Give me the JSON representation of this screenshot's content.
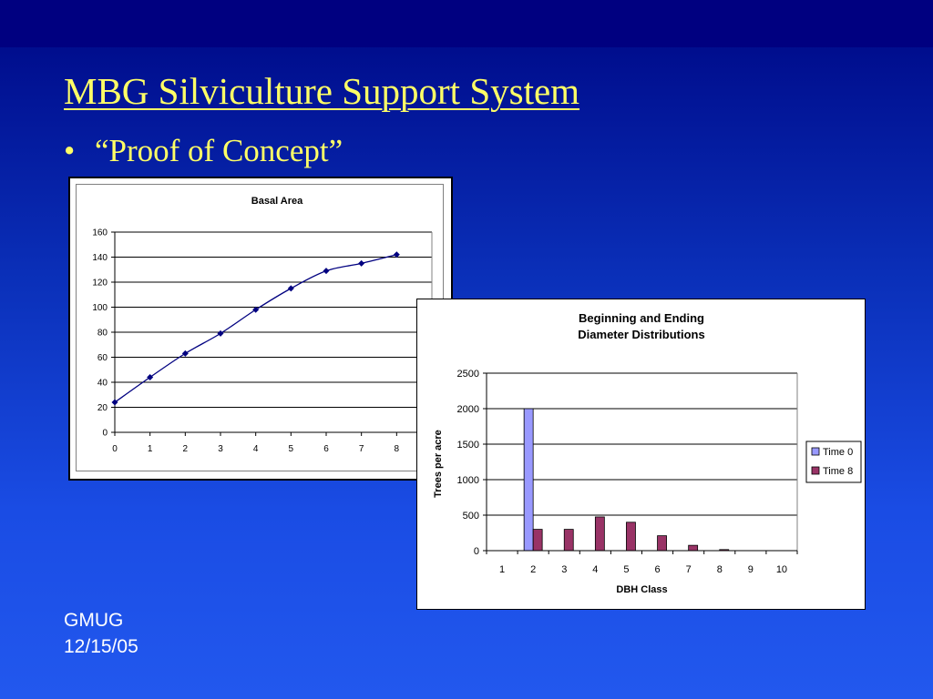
{
  "slide": {
    "title": "MBG Silviculture Support System",
    "bullet": "“Proof of Concept”",
    "footer_line1": "GMUG",
    "footer_line2": "12/15/05"
  },
  "colors": {
    "title_text": "#ffff66",
    "line_series": "#000080",
    "time0_bar": "#9999ff",
    "time8_bar": "#993366"
  },
  "chart_data": [
    {
      "type": "line",
      "title": "Basal Area",
      "xlabel": "",
      "ylabel": "",
      "x": [
        0,
        1,
        2,
        3,
        4,
        5,
        6,
        7,
        8
      ],
      "series": [
        {
          "name": "",
          "values": [
            24,
            44,
            63,
            79,
            98,
            115,
            129,
            135,
            142
          ]
        }
      ],
      "xticks": [
        "0",
        "1",
        "2",
        "3",
        "4",
        "5",
        "6",
        "7",
        "8"
      ],
      "yticks": [
        "0",
        "20",
        "40",
        "60",
        "80",
        "100",
        "120",
        "140",
        "160"
      ],
      "ylim": [
        0,
        160
      ],
      "grid": "horizontal",
      "legend": "none",
      "marker": "diamond"
    },
    {
      "type": "bar",
      "title_lines": [
        "Beginning and Ending",
        "Diameter Distributions"
      ],
      "xlabel": "DBH Class",
      "ylabel": "Trees per acre",
      "categories": [
        "1",
        "2",
        "3",
        "4",
        "5",
        "6",
        "7",
        "8",
        "9",
        "10"
      ],
      "series": [
        {
          "name": "Time 0",
          "values": [
            0,
            2000,
            0,
            0,
            0,
            0,
            0,
            0,
            0,
            0
          ]
        },
        {
          "name": "Time 8",
          "values": [
            0,
            300,
            300,
            475,
            400,
            210,
            75,
            15,
            0,
            0
          ]
        }
      ],
      "yticks": [
        "0",
        "500",
        "1000",
        "1500",
        "2000",
        "2500"
      ],
      "ylim": [
        0,
        2500
      ],
      "grid": "horizontal",
      "legend": "right"
    }
  ]
}
